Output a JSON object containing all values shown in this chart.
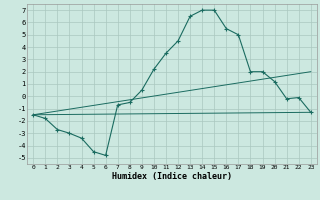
{
  "xlabel": "Humidex (Indice chaleur)",
  "bg_color": "#cce8e0",
  "grid_color": "#aac8c0",
  "line_color": "#1a6b60",
  "xlim": [
    -0.5,
    23.5
  ],
  "ylim": [
    -5.5,
    7.5
  ],
  "xticks": [
    0,
    1,
    2,
    3,
    4,
    5,
    6,
    7,
    8,
    9,
    10,
    11,
    12,
    13,
    14,
    15,
    16,
    17,
    18,
    19,
    20,
    21,
    22,
    23
  ],
  "yticks": [
    -5,
    -4,
    -3,
    -2,
    -1,
    0,
    1,
    2,
    3,
    4,
    5,
    6,
    7
  ],
  "line1_x": [
    0,
    1,
    2,
    3,
    4,
    5,
    6,
    7,
    8,
    9,
    10,
    11,
    12,
    13,
    14,
    15,
    16,
    17,
    18,
    19,
    20,
    21,
    22,
    23
  ],
  "line1_y": [
    -1.5,
    -1.8,
    -2.7,
    -3.0,
    -3.4,
    -4.5,
    -4.8,
    -0.7,
    -0.5,
    0.5,
    2.2,
    3.5,
    4.5,
    6.5,
    7.0,
    7.0,
    5.5,
    5.0,
    2.0,
    2.0,
    1.2,
    -0.2,
    -0.1,
    -1.3
  ],
  "line2_x": [
    0,
    23
  ],
  "line2_y": [
    -1.5,
    -1.3
  ],
  "line3_x": [
    0,
    23
  ],
  "line3_y": [
    -1.5,
    2.0
  ],
  "marker_x": [
    0,
    1,
    2,
    3,
    4,
    5,
    6,
    7,
    8,
    9,
    10,
    11,
    12,
    13,
    14,
    15,
    16,
    17,
    18,
    19,
    20,
    21,
    22,
    23
  ],
  "marker_y": [
    -1.5,
    -1.8,
    -2.7,
    -3.0,
    -3.4,
    -4.5,
    -4.8,
    -0.7,
    -0.5,
    0.5,
    2.2,
    3.5,
    4.5,
    6.5,
    7.0,
    7.0,
    5.5,
    5.0,
    2.0,
    2.0,
    1.2,
    -0.2,
    -0.1,
    -1.3
  ]
}
